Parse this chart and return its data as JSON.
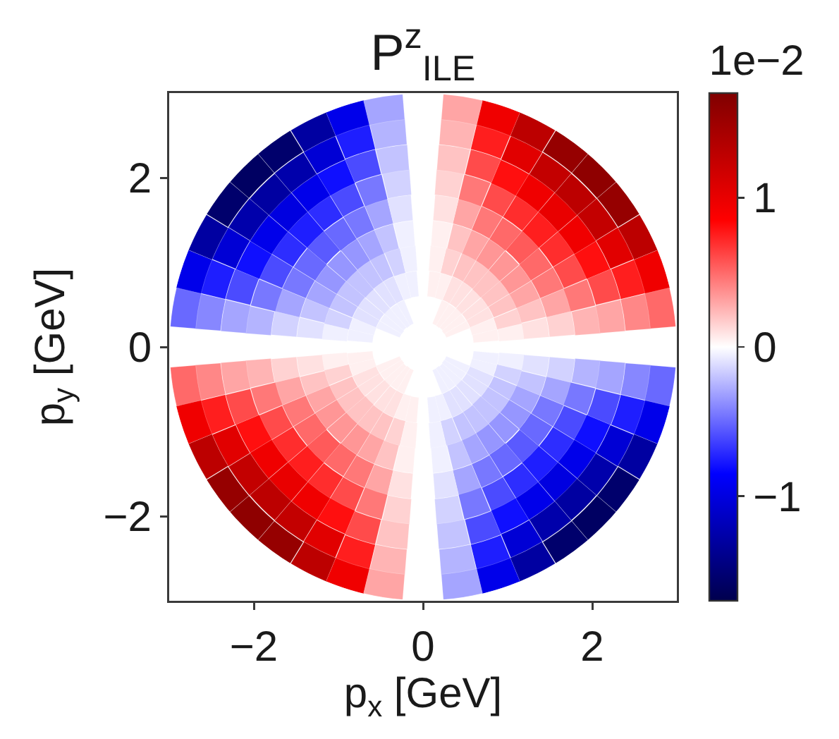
{
  "chart_data": {
    "type": "scatter",
    "title": "P$^{z}$$_{ILE}$",
    "xlabel": "p$_{x}$ [GeV]",
    "ylabel": "p$_{y}$ [GeV]",
    "clabel": "1e−2",
    "xlim": [
      -3,
      3
    ],
    "ylim": [
      -3,
      3
    ],
    "xticks": [
      -2,
      0,
      2
    ],
    "yticks": [
      -2,
      0,
      2
    ],
    "clim": [
      -1.7,
      1.7
    ],
    "cticks": [
      -1,
      0,
      1
    ],
    "grid": false,
    "x": [
      0.74,
      1.04,
      1.33,
      1.63,
      1.93,
      2.22,
      2.52,
      2.81,
      0.71,
      1.0,
      1.28,
      1.57,
      1.85,
      2.14,
      2.43,
      2.71,
      0.4,
      0.67,
      0.94,
      1.2,
      1.47,
      1.74,
      2.0,
      2.27,
      2.54,
      0.36,
      0.61,
      0.85,
      1.09,
      1.33,
      1.58,
      1.82,
      2.06,
      2.31,
      0.32,
      0.53,
      0.74,
      0.95,
      1.17,
      1.38,
      1.59,
      1.8,
      2.02,
      0.26,
      0.44,
      0.62,
      0.79,
      0.97,
      1.15,
      1.32,
      1.5,
      1.68,
      0.2,
      0.34,
      0.48,
      0.61,
      0.75,
      0.89,
      1.02,
      1.16,
      1.29,
      0.23,
      0.32,
      0.42,
      0.51,
      0.6,
      0.7,
      0.79,
      0.88,
      0.12,
      0.16,
      0.21,
      0.26,
      0.3,
      0.35,
      0.4,
      0.45,
      -0.74,
      -1.04,
      -1.33,
      -1.63,
      -1.93,
      -2.22,
      -2.52,
      -2.81,
      -0.71,
      -1.0,
      -1.28,
      -1.57,
      -1.85,
      -2.14,
      -2.43,
      -2.71,
      -0.4,
      -0.67,
      -0.94,
      -1.2,
      -1.47,
      -1.74,
      -2.0,
      -2.27,
      -2.54,
      -0.36,
      -0.61,
      -0.85,
      -1.09,
      -1.33,
      -1.58,
      -1.82,
      -2.06,
      -2.31,
      -0.32,
      -0.53,
      -0.74,
      -0.95,
      -1.17,
      -1.38,
      -1.59,
      -1.8,
      -2.02,
      -0.26,
      -0.44,
      -0.62,
      -0.79,
      -0.97,
      -1.15,
      -1.32,
      -1.5,
      -1.68,
      -0.2,
      -0.34,
      -0.48,
      -0.61,
      -0.75,
      -0.89,
      -1.02,
      -1.16,
      -1.29,
      -0.23,
      -0.32,
      -0.42,
      -0.51,
      -0.6,
      -0.7,
      -0.79,
      -0.88,
      -0.12,
      -0.16,
      -0.21,
      -0.26,
      -0.3,
      -0.35,
      -0.4,
      -0.45,
      -0.74,
      -1.04,
      -1.33,
      -1.63,
      -1.93,
      -2.22,
      -2.52,
      -2.81,
      -0.71,
      -1.0,
      -1.28,
      -1.57,
      -1.85,
      -2.14,
      -2.43,
      -2.71,
      -0.4,
      -0.67,
      -0.94,
      -1.2,
      -1.47,
      -1.74,
      -2.0,
      -2.27,
      -2.54,
      -0.36,
      -0.61,
      -0.85,
      -1.09,
      -1.33,
      -1.58,
      -1.82,
      -2.06,
      -2.31,
      -0.32,
      -0.53,
      -0.74,
      -0.95,
      -1.17,
      -1.38,
      -1.59,
      -1.8,
      -2.02,
      -0.26,
      -0.44,
      -0.62,
      -0.79,
      -0.97,
      -1.15,
      -1.32,
      -1.5,
      -1.68,
      -0.2,
      -0.34,
      -0.48,
      -0.61,
      -0.75,
      -0.89,
      -1.02,
      -1.16,
      -1.29,
      -0.23,
      -0.32,
      -0.42,
      -0.51,
      -0.6,
      -0.7,
      -0.79,
      -0.88,
      -0.12,
      -0.16,
      -0.21,
      -0.26,
      -0.3,
      -0.35,
      -0.4,
      -0.45,
      0.74,
      1.04,
      1.33,
      1.63,
      1.93,
      2.22,
      2.52,
      2.81,
      0.71,
      1.0,
      1.28,
      1.57,
      1.85,
      2.14,
      2.43,
      2.71,
      0.4,
      0.67,
      0.94,
      1.2,
      1.47,
      1.74,
      2.0,
      2.27,
      2.54,
      0.36,
      0.61,
      0.85,
      1.09,
      1.33,
      1.58,
      1.82,
      2.06,
      2.31,
      0.32,
      0.53,
      0.74,
      0.95,
      1.17,
      1.38,
      1.59,
      1.8,
      2.02,
      0.26,
      0.44,
      0.62,
      0.79,
      0.97,
      1.15,
      1.32,
      1.5,
      1.68,
      0.2,
      0.34,
      0.48,
      0.61,
      0.75,
      0.89,
      1.02,
      1.16,
      1.29,
      0.23,
      0.32,
      0.42,
      0.51,
      0.6,
      0.7,
      0.79,
      0.88,
      0.12,
      0.16,
      0.21,
      0.26,
      0.3,
      0.35,
      0.4,
      0.45
    ],
    "values": [
      0.12,
      0.16,
      0.21,
      0.26,
      0.3,
      0.35,
      0.4,
      0.45,
      0.23,
      0.32,
      0.42,
      0.51,
      0.6,
      0.7,
      0.79,
      0.88,
      0.2,
      0.34,
      0.48,
      0.61,
      0.75,
      0.89,
      1.02,
      1.16,
      1.29,
      0.26,
      0.44,
      0.62,
      0.79,
      0.97,
      1.15,
      1.32,
      1.5,
      1.68,
      0.32,
      0.53,
      0.74,
      0.95,
      1.17,
      1.38,
      1.59,
      1.8,
      2.02,
      0.36,
      0.61,
      0.85,
      1.09,
      1.33,
      1.58,
      1.82,
      2.06,
      2.31,
      0.4,
      0.67,
      0.94,
      1.2,
      1.47,
      1.74,
      2.0,
      2.27,
      2.54,
      0.71,
      1.0,
      1.28,
      1.57,
      1.85,
      2.14,
      2.43,
      2.71,
      0.74,
      1.04,
      1.33,
      1.63,
      1.93,
      2.22,
      2.52,
      2.81,
      0.12,
      0.16,
      0.21,
      0.26,
      0.3,
      0.35,
      0.4,
      0.45,
      0.23,
      0.32,
      0.42,
      0.51,
      0.6,
      0.7,
      0.79,
      0.88,
      0.2,
      0.34,
      0.48,
      0.61,
      0.75,
      0.89,
      1.02,
      1.16,
      1.29,
      0.26,
      0.44,
      0.62,
      0.79,
      0.97,
      1.15,
      1.32,
      1.5,
      1.68,
      0.32,
      0.53,
      0.74,
      0.95,
      1.17,
      1.38,
      1.59,
      1.8,
      2.02,
      0.36,
      0.61,
      0.85,
      1.09,
      1.33,
      1.58,
      1.82,
      2.06,
      2.31,
      0.4,
      0.67,
      0.94,
      1.2,
      1.47,
      1.74,
      2.0,
      2.27,
      2.54,
      0.71,
      1.0,
      1.28,
      1.57,
      1.85,
      2.14,
      2.43,
      2.71,
      0.74,
      1.04,
      1.33,
      1.63,
      1.93,
      2.22,
      2.52,
      2.81,
      -0.12,
      -0.16,
      -0.21,
      -0.26,
      -0.3,
      -0.35,
      -0.4,
      -0.45,
      -0.23,
      -0.32,
      -0.42,
      -0.51,
      -0.6,
      -0.7,
      -0.79,
      -0.88,
      -0.2,
      -0.34,
      -0.48,
      -0.61,
      -0.75,
      -0.89,
      -1.02,
      -1.16,
      -1.29,
      -0.26,
      -0.44,
      -0.62,
      -0.79,
      -0.97,
      -1.15,
      -1.32,
      -1.5,
      -1.68,
      -0.32,
      -0.53,
      -0.74,
      -0.95,
      -1.17,
      -1.38,
      -1.59,
      -1.8,
      -2.02,
      -0.36,
      -0.61,
      -0.85,
      -1.09,
      -1.33,
      -1.58,
      -1.82,
      -2.06,
      -2.31,
      -0.4,
      -0.67,
      -0.94,
      -1.2,
      -1.47,
      -1.74,
      -2.0,
      -2.27,
      -2.54,
      -0.71,
      -1.0,
      -1.28,
      -1.57,
      -1.85,
      -2.14,
      -2.43,
      -2.71,
      -0.74,
      -1.04,
      -1.33,
      -1.63,
      -1.93,
      -2.22,
      -2.52,
      -2.81,
      -0.12,
      -0.16,
      -0.21,
      -0.26,
      -0.3,
      -0.35,
      -0.4,
      -0.45,
      -0.23,
      -0.32,
      -0.42,
      -0.51,
      -0.6,
      -0.7,
      -0.79,
      -0.88,
      -0.2,
      -0.34,
      -0.48,
      -0.61,
      -0.75,
      -0.89,
      -1.02,
      -1.16,
      -1.29,
      -0.26,
      -0.44,
      -0.62,
      -0.79,
      -0.97,
      -1.15,
      -1.32,
      -1.5,
      -1.68,
      -0.32,
      -0.53,
      -0.74,
      -0.95,
      -1.17,
      -1.38,
      -1.59,
      -1.8,
      -2.02,
      -0.36,
      -0.61,
      -0.85,
      -1.09,
      -1.33,
      -1.58,
      -1.82,
      -2.06,
      -2.31,
      -0.4,
      -0.67,
      -0.94,
      -1.2,
      -1.47,
      -1.74,
      -2.0,
      -2.27,
      -2.54,
      -0.71,
      -1.0,
      -1.28,
      -1.57,
      -1.85,
      -2.14,
      -2.43,
      -2.71,
      -0.74,
      -1.04,
      -1.33,
      -1.63,
      -1.93,
      -2.22,
      -2.52,
      -2.81
    ],
    "cvalues": [
      0.05,
      0.05,
      0.1,
      0.15,
      0.25,
      0.3,
      0.4,
      0.5,
      0.05,
      0.15,
      0.2,
      0.3,
      0.45,
      0.6,
      0.75,
      0.95,
      0.05,
      0.1,
      0.2,
      0.3,
      0.45,
      0.6,
      0.8,
      1.05,
      1.3,
      0.05,
      0.1,
      0.2,
      0.35,
      0.5,
      0.7,
      0.95,
      1.25,
      1.55,
      0.05,
      0.1,
      0.2,
      0.35,
      0.55,
      0.75,
      1.0,
      1.3,
      1.6,
      0.05,
      0.1,
      0.2,
      0.35,
      0.5,
      0.7,
      0.95,
      1.25,
      1.55,
      0.05,
      0.1,
      0.2,
      0.3,
      0.45,
      0.6,
      0.8,
      1.05,
      1.3,
      0.05,
      0.15,
      0.2,
      0.3,
      0.45,
      0.6,
      0.75,
      0.95,
      0.05,
      0.05,
      0.05,
      0.1,
      0.15,
      0.2,
      0.25,
      0.3,
      -0.05,
      -0.05,
      -0.1,
      -0.15,
      -0.25,
      -0.3,
      -0.4,
      -0.5,
      -0.05,
      -0.15,
      -0.2,
      -0.3,
      -0.45,
      -0.6,
      -0.75,
      -0.95,
      -0.05,
      -0.1,
      -0.2,
      -0.3,
      -0.45,
      -0.6,
      -0.8,
      -1.05,
      -1.3,
      -0.05,
      -0.1,
      -0.2,
      -0.35,
      -0.5,
      -0.7,
      -0.95,
      -1.25,
      -1.55,
      -0.05,
      -0.1,
      -0.2,
      -0.35,
      -0.55,
      -0.75,
      -1.0,
      -1.3,
      -1.6,
      -0.05,
      -0.1,
      -0.2,
      -0.35,
      -0.5,
      -0.7,
      -0.95,
      -1.25,
      -1.55,
      -0.05,
      -0.1,
      -0.2,
      -0.3,
      -0.45,
      -0.6,
      -0.8,
      -1.05,
      -1.3,
      -0.05,
      -0.15,
      -0.2,
      -0.3,
      -0.45,
      -0.6,
      -0.75,
      -0.95,
      -0.05,
      -0.05,
      -0.05,
      -0.1,
      -0.15,
      -0.2,
      -0.25,
      -0.3,
      0.05,
      0.05,
      0.1,
      0.15,
      0.25,
      0.3,
      0.4,
      0.5,
      0.05,
      0.15,
      0.2,
      0.3,
      0.45,
      0.6,
      0.75,
      0.95,
      0.05,
      0.1,
      0.2,
      0.3,
      0.45,
      0.6,
      0.8,
      1.05,
      1.3,
      0.05,
      0.1,
      0.2,
      0.35,
      0.5,
      0.7,
      0.95,
      1.25,
      1.55,
      0.05,
      0.1,
      0.2,
      0.35,
      0.55,
      0.75,
      1.0,
      1.3,
      1.6,
      0.05,
      0.1,
      0.2,
      0.35,
      0.5,
      0.7,
      0.95,
      1.25,
      1.55,
      0.05,
      0.1,
      0.2,
      0.3,
      0.45,
      0.6,
      0.8,
      1.05,
      1.3,
      0.05,
      0.15,
      0.2,
      0.3,
      0.45,
      0.6,
      0.75,
      0.95,
      0.05,
      0.05,
      0.05,
      0.1,
      0.15,
      0.2,
      0.25,
      0.3,
      -0.05,
      -0.05,
      -0.1,
      -0.15,
      -0.25,
      -0.3,
      -0.4,
      -0.5,
      -0.05,
      -0.15,
      -0.2,
      -0.3,
      -0.45,
      -0.6,
      -0.75,
      -0.95,
      -0.05,
      -0.1,
      -0.2,
      -0.3,
      -0.45,
      -0.6,
      -0.8,
      -1.05,
      -1.3,
      -0.05,
      -0.1,
      -0.2,
      -0.35,
      -0.5,
      -0.7,
      -0.95,
      -1.25,
      -1.55,
      -0.05,
      -0.1,
      -0.2,
      -0.35,
      -0.55,
      -0.75,
      -1.0,
      -1.3,
      -1.6,
      -0.05,
      -0.1,
      -0.2,
      -0.35,
      -0.5,
      -0.7,
      -0.95,
      -1.25,
      -1.55,
      -0.05,
      -0.1,
      -0.2,
      -0.3,
      -0.45,
      -0.6,
      -0.8,
      -1.05,
      -1.3,
      -0.05,
      -0.15,
      -0.2,
      -0.3,
      -0.45,
      -0.6,
      -0.75,
      -0.95,
      -0.05,
      -0.05,
      -0.05,
      -0.1,
      -0.15,
      -0.2,
      -0.25,
      -0.3
    ],
    "sizes": [
      0.26,
      0.37,
      0.47,
      0.58,
      0.68,
      0.79,
      0.89,
      1,
      0.26,
      0.37,
      0.47,
      0.58,
      0.68,
      0.79,
      0.89,
      1,
      0.16,
      0.26,
      0.37,
      0.47,
      0.58,
      0.68,
      0.79,
      0.89,
      1,
      0.16,
      0.26,
      0.37,
      0.47,
      0.58,
      0.68,
      0.79,
      0.89,
      1,
      0.16,
      0.26,
      0.37,
      0.47,
      0.58,
      0.68,
      0.79,
      0.89,
      1,
      0.16,
      0.26,
      0.37,
      0.47,
      0.58,
      0.68,
      0.79,
      0.89,
      1,
      0.16,
      0.26,
      0.37,
      0.47,
      0.58,
      0.68,
      0.79,
      0.89,
      1,
      0.26,
      0.37,
      0.47,
      0.58,
      0.68,
      0.79,
      0.89,
      1,
      0.26,
      0.37,
      0.47,
      0.58,
      0.68,
      0.79,
      0.89,
      1,
      0.26,
      0.37,
      0.47,
      0.58,
      0.68,
      0.79,
      0.89,
      1,
      0.26,
      0.37,
      0.47,
      0.58,
      0.68,
      0.79,
      0.89,
      1,
      0.16,
      0.26,
      0.37,
      0.47,
      0.58,
      0.68,
      0.79,
      0.89,
      1,
      0.16,
      0.26,
      0.37,
      0.47,
      0.58,
      0.68,
      0.79,
      0.89,
      1,
      0.16,
      0.26,
      0.37,
      0.47,
      0.58,
      0.68,
      0.79,
      0.89,
      1,
      0.16,
      0.26,
      0.37,
      0.47,
      0.58,
      0.68,
      0.79,
      0.89,
      1,
      0.16,
      0.26,
      0.37,
      0.47,
      0.58,
      0.68,
      0.79,
      0.89,
      1,
      0.26,
      0.37,
      0.47,
      0.58,
      0.68,
      0.79,
      0.89,
      1,
      0.26,
      0.37,
      0.47,
      0.58,
      0.68,
      0.79,
      0.89,
      1,
      0.26,
      0.37,
      0.47,
      0.58,
      0.68,
      0.79,
      0.89,
      1,
      0.26,
      0.37,
      0.47,
      0.58,
      0.68,
      0.79,
      0.89,
      1,
      0.16,
      0.26,
      0.37,
      0.47,
      0.58,
      0.68,
      0.79,
      0.89,
      1,
      0.16,
      0.26,
      0.37,
      0.47,
      0.58,
      0.68,
      0.79,
      0.89,
      1,
      0.16,
      0.26,
      0.37,
      0.47,
      0.58,
      0.68,
      0.79,
      0.89,
      1,
      0.16,
      0.26,
      0.37,
      0.47,
      0.58,
      0.68,
      0.79,
      0.89,
      1,
      0.16,
      0.26,
      0.37,
      0.47,
      0.58,
      0.68,
      0.79,
      0.89,
      1,
      0.26,
      0.37,
      0.47,
      0.58,
      0.68,
      0.79,
      0.89,
      1,
      0.26,
      0.37,
      0.47,
      0.58,
      0.68,
      0.79,
      0.89,
      1,
      0.26,
      0.37,
      0.47,
      0.58,
      0.68,
      0.79,
      0.89,
      1,
      0.26,
      0.37,
      0.47,
      0.58,
      0.68,
      0.79,
      0.89,
      1,
      0.16,
      0.26,
      0.37,
      0.47,
      0.58,
      0.68,
      0.79,
      0.89,
      1,
      0.16,
      0.26,
      0.37,
      0.47,
      0.58,
      0.68,
      0.79,
      0.89,
      1,
      0.16,
      0.26,
      0.37,
      0.47,
      0.58,
      0.68,
      0.79,
      0.89,
      1,
      0.16,
      0.26,
      0.37,
      0.47,
      0.58,
      0.68,
      0.79,
      0.89,
      1,
      0.16,
      0.26,
      0.37,
      0.47,
      0.58,
      0.68,
      0.79,
      0.89,
      1,
      0.26,
      0.37,
      0.47,
      0.58,
      0.68,
      0.79,
      0.89,
      1,
      0.26,
      0.37,
      0.47,
      0.58,
      0.68,
      0.79,
      0.89,
      1
    ]
  }
}
